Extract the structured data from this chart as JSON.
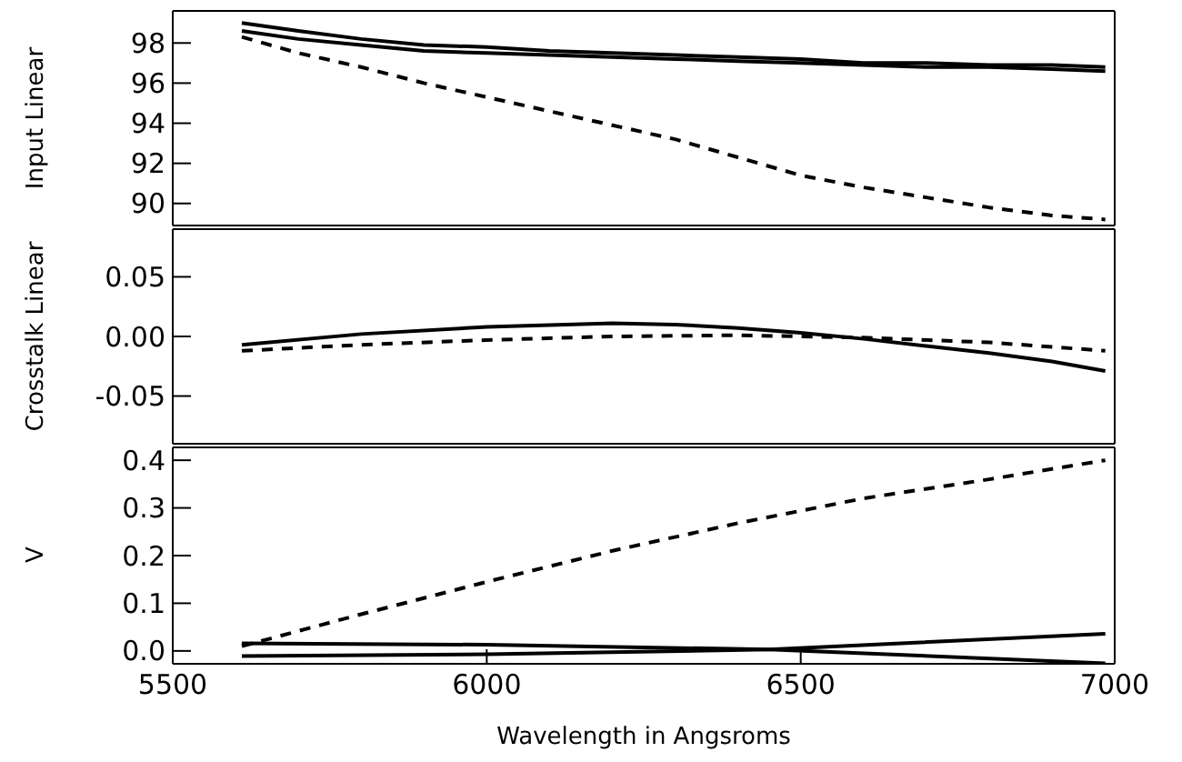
{
  "chart_data": [
    {
      "type": "line",
      "ylabel": "Input Linear",
      "xlim": [
        5500,
        7000
      ],
      "xticks": [
        5500,
        6000,
        6500,
        7000
      ],
      "ylim": [
        88.9,
        99.6
      ],
      "yticks": [
        90,
        92,
        94,
        96,
        98
      ],
      "tick_labels": "y",
      "marker": "none",
      "series": [
        {
          "color": "#000000",
          "line_style": "solid",
          "x": [
            5610,
            5700,
            5800,
            5900,
            6000,
            6100,
            6200,
            6300,
            6400,
            6500,
            6600,
            6700,
            6800,
            6900,
            6985
          ],
          "values": [
            99.0,
            98.6,
            98.2,
            97.9,
            97.8,
            97.6,
            97.5,
            97.4,
            97.3,
            97.2,
            97.0,
            97.0,
            96.9,
            96.9,
            96.8
          ]
        },
        {
          "color": "#000000",
          "line_style": "solid",
          "x": [
            5610,
            5700,
            5800,
            5900,
            6000,
            6100,
            6200,
            6300,
            6400,
            6500,
            6600,
            6700,
            6800,
            6900,
            6985
          ],
          "values": [
            98.6,
            98.2,
            97.9,
            97.6,
            97.5,
            97.4,
            97.3,
            97.2,
            97.1,
            97.0,
            96.9,
            96.8,
            96.8,
            96.7,
            96.6
          ]
        },
        {
          "color": "#000000",
          "line_style": "dashed",
          "x": [
            5610,
            5700,
            5800,
            5900,
            6000,
            6100,
            6200,
            6300,
            6400,
            6500,
            6600,
            6700,
            6800,
            6900,
            6985
          ],
          "values": [
            98.3,
            97.5,
            96.8,
            96.0,
            95.3,
            94.6,
            93.9,
            93.2,
            92.3,
            91.4,
            90.8,
            90.3,
            89.8,
            89.4,
            89.2
          ]
        }
      ]
    },
    {
      "type": "line",
      "ylabel": "Crosstalk Linear",
      "xlim": [
        5500,
        7000
      ],
      "xticks": [
        5500,
        6000,
        6500,
        7000
      ],
      "ylim": [
        -0.09,
        0.09
      ],
      "yticks": [
        -0.05,
        {
          "value": 0,
          "label": "0.00"
        },
        0.05
      ],
      "tick_labels": "y",
      "marker": "none",
      "series": [
        {
          "color": "#000000",
          "line_style": "solid",
          "x": [
            5610,
            5800,
            6000,
            6200,
            6300,
            6400,
            6500,
            6600,
            6700,
            6800,
            6900,
            6985
          ],
          "values": [
            -0.007,
            0.002,
            0.008,
            0.011,
            0.01,
            0.007,
            0.003,
            -0.002,
            -0.008,
            -0.014,
            -0.021,
            -0.029
          ]
        },
        {
          "color": "#000000",
          "line_style": "dashed",
          "x": [
            5610,
            5800,
            6000,
            6200,
            6400,
            6600,
            6800,
            6985
          ],
          "values": [
            -0.012,
            -0.007,
            -0.003,
            0.0,
            0.001,
            -0.001,
            -0.005,
            -0.012
          ]
        }
      ]
    },
    {
      "type": "line",
      "ylabel": "V",
      "xlabel": "Wavelength in Angsroms",
      "xlim": [
        5500,
        7000
      ],
      "xticks": [
        5500,
        6000,
        6500,
        7000
      ],
      "ylim": [
        -0.027,
        0.427
      ],
      "yticks": [
        {
          "value": 0,
          "label": "0.0"
        },
        0.1,
        0.2,
        0.3,
        0.4
      ],
      "marker": "none",
      "series": [
        {
          "color": "#000000",
          "line_style": "dashed",
          "x": [
            5610,
            5800,
            6000,
            6200,
            6400,
            6500,
            6600,
            6800,
            6985
          ],
          "values": [
            0.01,
            0.077,
            0.145,
            0.21,
            0.268,
            0.294,
            0.32,
            0.36,
            0.4
          ]
        },
        {
          "color": "#000000",
          "line_style": "solid",
          "x": [
            5610,
            6000,
            6450,
            6985
          ],
          "values": [
            0.016,
            0.013,
            0.003,
            -0.026
          ]
        },
        {
          "color": "#000000",
          "line_style": "solid",
          "x": [
            5610,
            6000,
            6450,
            6985
          ],
          "values": [
            -0.011,
            -0.007,
            0.003,
            0.036
          ]
        }
      ]
    }
  ]
}
